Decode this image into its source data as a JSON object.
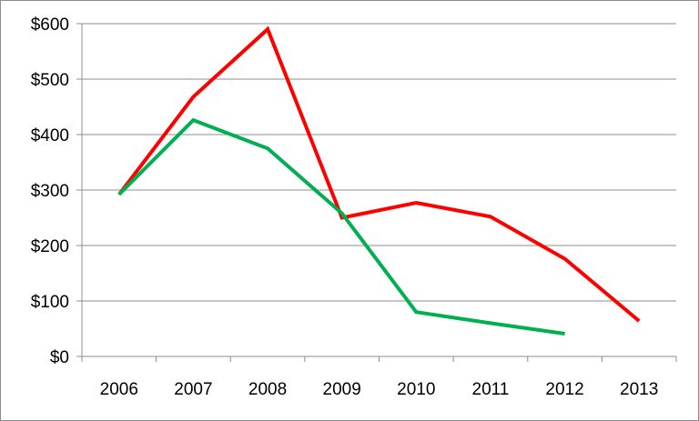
{
  "chart_data": {
    "type": "line",
    "categories": [
      "2006",
      "2007",
      "2008",
      "2009",
      "2010",
      "2011",
      "2012",
      "2013"
    ],
    "series": [
      {
        "color": "#ff0000",
        "values": [
          292,
          468,
          590,
          250,
          277,
          252,
          176,
          64
        ]
      },
      {
        "color": "#00b050",
        "values": [
          292,
          426,
          375,
          258,
          80,
          60,
          41,
          null
        ]
      }
    ],
    "ylim": [
      0,
      600
    ],
    "yticks": [
      0,
      100,
      200,
      300,
      400,
      500,
      600
    ],
    "ytick_labels": [
      "$0",
      "$100",
      "$200",
      "$300",
      "$400",
      "$500",
      "$600"
    ],
    "grid": true,
    "legend": "none"
  }
}
